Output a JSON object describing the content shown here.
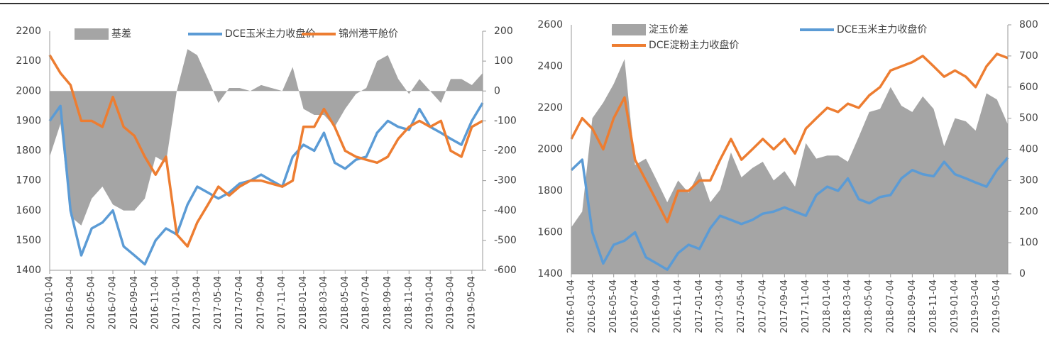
{
  "chart_data": [
    {
      "type": "line",
      "x": [
        "2016-01-04",
        "2016-02-04",
        "2016-03-04",
        "2016-04-04",
        "2016-05-04",
        "2016-06-04",
        "2016-07-04",
        "2016-08-04",
        "2016-09-04",
        "2016-10-04",
        "2016-11-04",
        "2016-12-04",
        "2017-01-04",
        "2017-02-04",
        "2017-03-04",
        "2017-04-04",
        "2017-05-04",
        "2017-06-04",
        "2017-07-04",
        "2017-08-04",
        "2017-09-04",
        "2017-10-04",
        "2017-11-04",
        "2017-12-04",
        "2018-01-04",
        "2018-02-04",
        "2018-03-04",
        "2018-04-04",
        "2018-05-04",
        "2018-06-04",
        "2018-07-04",
        "2018-08-04",
        "2018-09-04",
        "2018-10-04",
        "2018-11-04",
        "2018-12-04",
        "2019-01-04",
        "2019-02-04",
        "2019-03-04",
        "2019-04-04",
        "2019-05-04",
        "2019-06-04"
      ],
      "xticks": [
        "2016-01-04",
        "2016-03-04",
        "2016-05-04",
        "2016-07-04",
        "2016-09-04",
        "2016-11-04",
        "2017-01-04",
        "2017-03-04",
        "2017-05-04",
        "2017-07-04",
        "2017-09-04",
        "2017-11-04",
        "2018-01-04",
        "2018-03-04",
        "2018-05-04",
        "2018-07-04",
        "2018-09-04",
        "2018-11-04",
        "2019-01-04",
        "2019-03-04",
        "2019-05-04"
      ],
      "ylim": [
        1400,
        2200
      ],
      "yticks": [
        1400,
        1500,
        1600,
        1700,
        1800,
        1900,
        2000,
        2100,
        2200
      ],
      "y2lim": [
        -600,
        200
      ],
      "y2ticks": [
        -600,
        -500,
        -400,
        -300,
        -200,
        -100,
        0,
        100,
        200
      ],
      "series": [
        {
          "name": "基差",
          "style": "area",
          "axis": "y2",
          "color": "#a5a5a5",
          "values": [
            -220,
            -110,
            -420,
            -450,
            -360,
            -320,
            -380,
            -400,
            -400,
            -360,
            -220,
            -240,
            0,
            140,
            120,
            40,
            -40,
            10,
            10,
            0,
            20,
            10,
            0,
            80,
            -60,
            -80,
            -80,
            -120,
            -60,
            -10,
            10,
            100,
            120,
            40,
            -10,
            40,
            0,
            -40,
            40,
            40,
            20,
            60
          ]
        },
        {
          "name": "DCE玉米主力收盘价",
          "style": "line",
          "color": "#5b9bd5",
          "values": [
            1900,
            1950,
            1600,
            1450,
            1540,
            1560,
            1600,
            1480,
            1450,
            1420,
            1500,
            1540,
            1520,
            1620,
            1680,
            1660,
            1640,
            1660,
            1690,
            1700,
            1720,
            1700,
            1680,
            1780,
            1820,
            1800,
            1860,
            1760,
            1740,
            1770,
            1780,
            1860,
            1900,
            1880,
            1870,
            1940,
            1880,
            1860,
            1840,
            1820,
            1900,
            1960
          ]
        },
        {
          "name": "锦州港平舱价",
          "style": "line",
          "color": "#ed7d31",
          "values": [
            2120,
            2060,
            2020,
            1900,
            1900,
            1880,
            1980,
            1880,
            1850,
            1780,
            1720,
            1780,
            1520,
            1480,
            1560,
            1620,
            1680,
            1650,
            1680,
            1700,
            1700,
            1690,
            1680,
            1700,
            1880,
            1880,
            1940,
            1880,
            1800,
            1780,
            1770,
            1760,
            1780,
            1840,
            1880,
            1900,
            1880,
            1900,
            1800,
            1780,
            1880,
            1900
          ]
        }
      ]
    },
    {
      "type": "line",
      "x": [
        "2016-01-04",
        "2016-02-04",
        "2016-03-04",
        "2016-04-04",
        "2016-05-04",
        "2016-06-04",
        "2016-07-04",
        "2016-08-04",
        "2016-09-04",
        "2016-10-04",
        "2016-11-04",
        "2016-12-04",
        "2017-01-04",
        "2017-02-04",
        "2017-03-04",
        "2017-04-04",
        "2017-05-04",
        "2017-06-04",
        "2017-07-04",
        "2017-08-04",
        "2017-09-04",
        "2017-10-04",
        "2017-11-04",
        "2017-12-04",
        "2018-01-04",
        "2018-02-04",
        "2018-03-04",
        "2018-04-04",
        "2018-05-04",
        "2018-06-04",
        "2018-07-04",
        "2018-08-04",
        "2018-09-04",
        "2018-10-04",
        "2018-11-04",
        "2018-12-04",
        "2019-01-04",
        "2019-02-04",
        "2019-03-04",
        "2019-04-04",
        "2019-05-04",
        "2019-06-04"
      ],
      "xticks": [
        "2016-01-04",
        "2016-03-04",
        "2016-05-04",
        "2016-07-04",
        "2016-09-04",
        "2016-11-04",
        "2017-01-04",
        "2017-03-04",
        "2017-05-04",
        "2017-07-04",
        "2017-09-04",
        "2017-11-04",
        "2018-01-04",
        "2018-03-04",
        "2018-05-04",
        "2018-07-04",
        "2018-09-04",
        "2018-11-04",
        "2019-01-04",
        "2019-03-04",
        "2019-05-04"
      ],
      "ylim": [
        1400,
        2600
      ],
      "yticks": [
        1400,
        1600,
        1800,
        2000,
        2200,
        2400,
        2600
      ],
      "y2lim": [
        0,
        800
      ],
      "y2ticks": [
        0,
        100,
        200,
        300,
        400,
        500,
        600,
        700,
        800
      ],
      "series": [
        {
          "name": "淀玉价差",
          "style": "area",
          "axis": "y2",
          "color": "#a5a5a5",
          "values": [
            150,
            200,
            500,
            550,
            610,
            690,
            350,
            370,
            300,
            230,
            300,
            260,
            330,
            230,
            270,
            390,
            310,
            340,
            360,
            300,
            330,
            280,
            420,
            370,
            380,
            380,
            360,
            440,
            520,
            530,
            600,
            540,
            520,
            570,
            530,
            410,
            500,
            490,
            460,
            580,
            560,
            480
          ]
        },
        {
          "name": "DCE玉米主力收盘价",
          "style": "line",
          "color": "#5b9bd5",
          "values": [
            1900,
            1950,
            1600,
            1450,
            1540,
            1560,
            1600,
            1480,
            1450,
            1420,
            1500,
            1540,
            1520,
            1620,
            1680,
            1660,
            1640,
            1660,
            1690,
            1700,
            1720,
            1700,
            1680,
            1780,
            1820,
            1800,
            1860,
            1760,
            1740,
            1770,
            1780,
            1860,
            1900,
            1880,
            1870,
            1940,
            1880,
            1860,
            1840,
            1820,
            1900,
            1960
          ]
        },
        {
          "name": "DCE淀粉主力收盘价",
          "style": "line",
          "color": "#ed7d31",
          "values": [
            2050,
            2150,
            2100,
            2000,
            2150,
            2250,
            1950,
            1850,
            1750,
            1650,
            1800,
            1800,
            1850,
            1850,
            1950,
            2050,
            1950,
            2000,
            2050,
            2000,
            2050,
            1980,
            2100,
            2150,
            2200,
            2180,
            2220,
            2200,
            2260,
            2300,
            2380,
            2400,
            2420,
            2450,
            2400,
            2350,
            2380,
            2350,
            2300,
            2400,
            2460,
            2440
          ]
        }
      ]
    }
  ]
}
